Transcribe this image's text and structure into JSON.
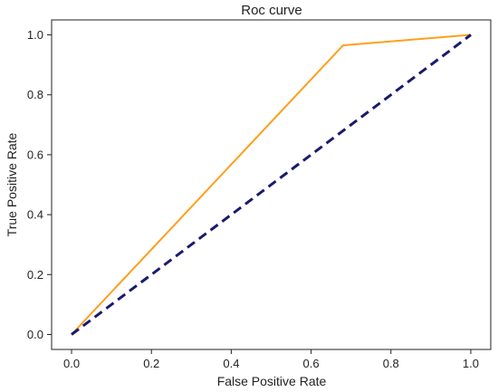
{
  "chart_data": {
    "type": "line",
    "title": "Roc curve",
    "xlabel": "False Positive Rate",
    "ylabel": "True Positive Rate",
    "xlim": [
      -0.05,
      1.05
    ],
    "ylim": [
      -0.05,
      1.05
    ],
    "xticks": [
      "0.0",
      "0.2",
      "0.4",
      "0.6",
      "0.8",
      "1.0"
    ],
    "yticks": [
      "0.0",
      "0.2",
      "0.4",
      "0.6",
      "0.8",
      "1.0"
    ],
    "grid": false,
    "series": [
      {
        "color": "#ff9f1c",
        "style": "solid",
        "x": [
          0.0,
          0.68,
          1.0
        ],
        "y": [
          0.0,
          0.965,
          1.0
        ]
      },
      {
        "color": "#1a1a6e",
        "style": "dashed",
        "x": [
          0.0,
          1.0
        ],
        "y": [
          0.0,
          1.0
        ]
      }
    ]
  }
}
